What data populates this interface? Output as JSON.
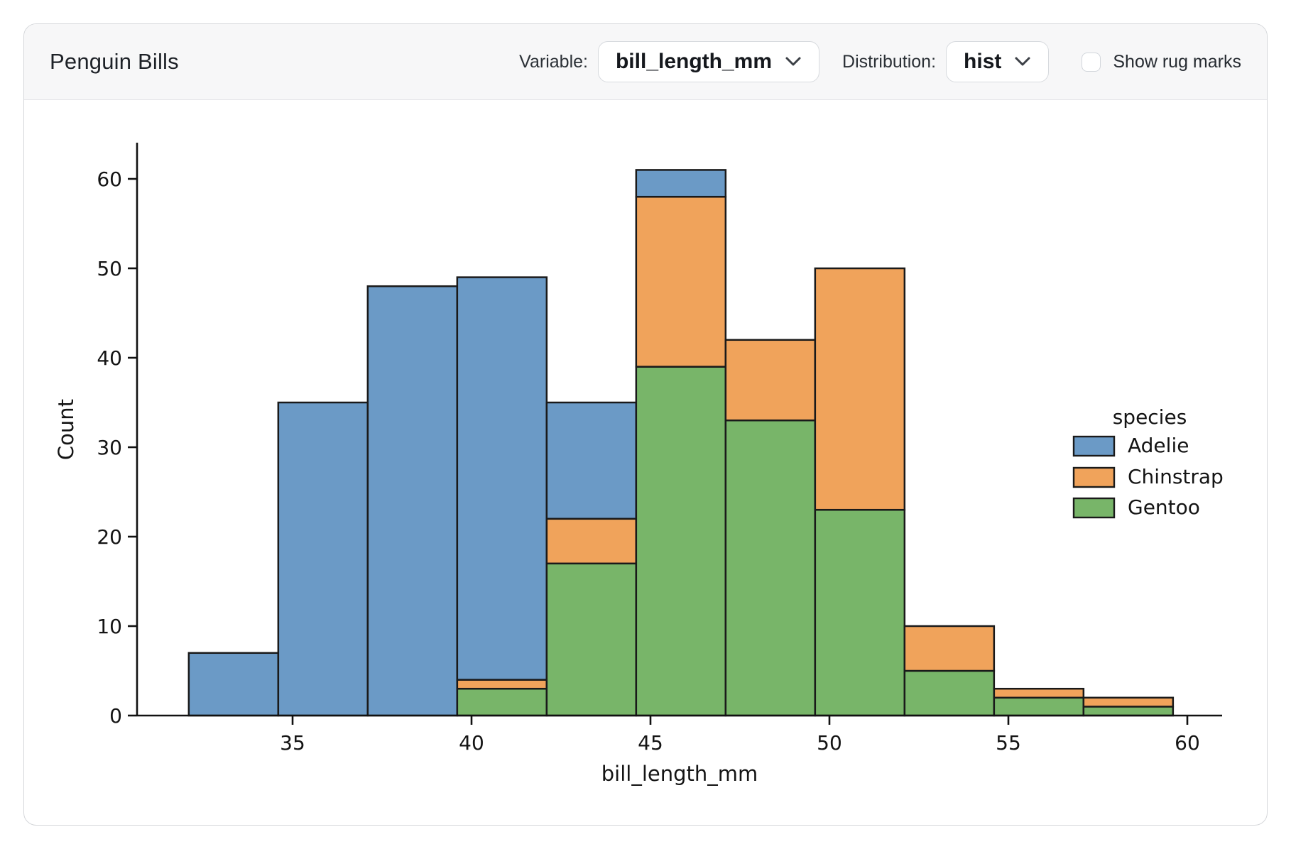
{
  "header": {
    "title": "Penguin Bills",
    "variable": {
      "label": "Variable:",
      "value": "bill_length_mm"
    },
    "distribution": {
      "label": "Distribution:",
      "value": "hist"
    },
    "rug": {
      "label": "Show rug marks",
      "checked": false
    }
  },
  "chart_data": {
    "type": "bar",
    "subtype": "stacked-histogram",
    "title": "",
    "xlabel": "bill_length_mm",
    "ylabel": "Count",
    "bin_edges": [
      32.1,
      34.6,
      37.1,
      39.6,
      42.1,
      44.6,
      47.1,
      49.6,
      52.1,
      54.6,
      57.1,
      59.6
    ],
    "series": [
      {
        "name": "Gentoo",
        "color": "#78b569",
        "values": [
          0,
          0,
          0,
          3,
          17,
          39,
          33,
          23,
          5,
          2,
          1
        ]
      },
      {
        "name": "Chinstrap",
        "color": "#f0a35b",
        "values": [
          0,
          0,
          0,
          1,
          5,
          19,
          9,
          27,
          5,
          1,
          1
        ]
      },
      {
        "name": "Adelie",
        "color": "#6b9ac6",
        "values": [
          7,
          35,
          48,
          45,
          13,
          3,
          0,
          0,
          0,
          0,
          0
        ]
      }
    ],
    "totals": [
      7,
      35,
      48,
      49,
      35,
      61,
      42,
      50,
      10,
      3,
      2
    ],
    "xticks": [
      35,
      40,
      45,
      50,
      55,
      60
    ],
    "yticks": [
      0,
      10,
      20,
      30,
      40,
      50,
      60
    ],
    "xlim": [
      30.7,
      61.0
    ],
    "ylim": [
      0,
      64.05
    ],
    "grid": false,
    "bar_edge_color": "#1a1a1a",
    "legend": {
      "title": "species",
      "position": "right",
      "entries": [
        {
          "label": "Adelie",
          "color": "#6b9ac6"
        },
        {
          "label": "Chinstrap",
          "color": "#f0a35b"
        },
        {
          "label": "Gentoo",
          "color": "#78b569"
        }
      ]
    }
  }
}
